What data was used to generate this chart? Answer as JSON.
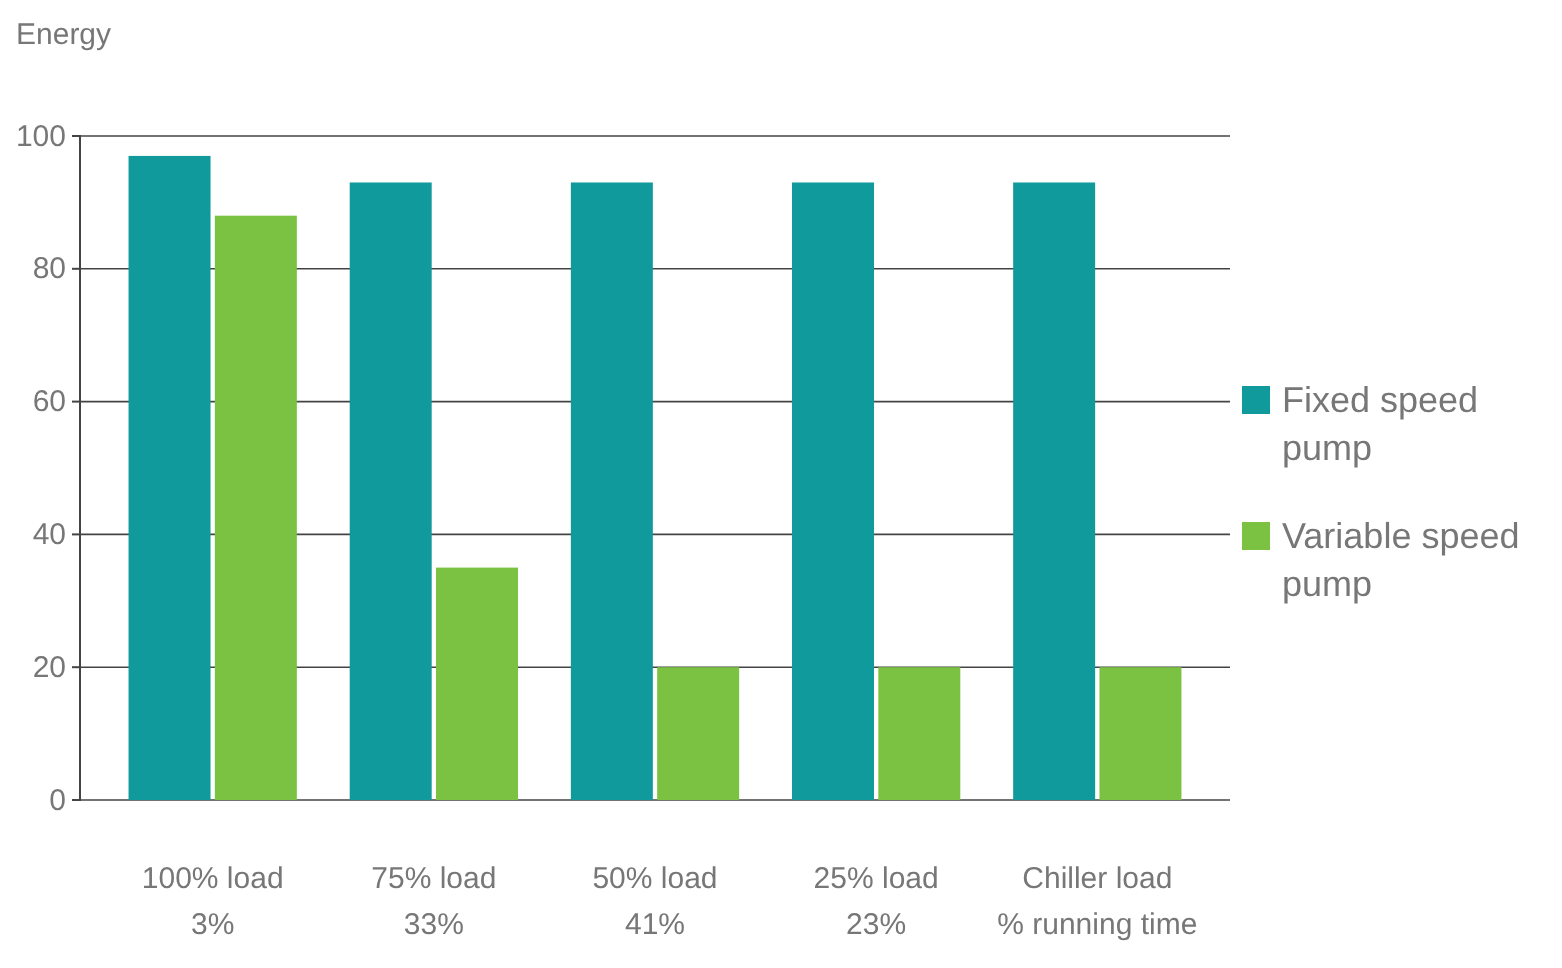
{
  "chart_data": {
    "type": "bar",
    "ylabel": "Energy",
    "categories": [
      "100% load\n3%",
      "75% load\n33%",
      "50% load\n41%",
      "25% load\n23%",
      "Chiller load\n% running time"
    ],
    "series": [
      {
        "name": "Fixed speed pump",
        "color": "#119a9c",
        "values": [
          97,
          93,
          93,
          93,
          93
        ]
      },
      {
        "name": "Variable speed pump",
        "color": "#7cc242",
        "values": [
          88,
          35,
          20,
          20,
          20
        ]
      }
    ],
    "ylim": [
      0,
      100
    ],
    "yticks": [
      0,
      20,
      40,
      60,
      80,
      100
    ],
    "grid": "y",
    "legend": "right"
  }
}
